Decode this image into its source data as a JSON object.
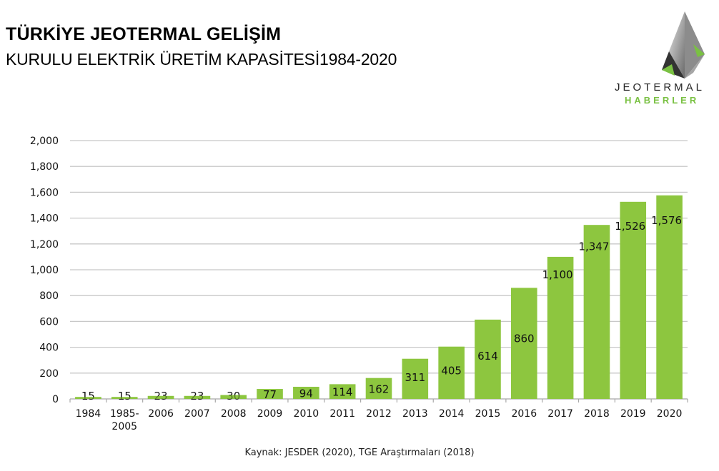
{
  "header": {
    "title": "TÜRKİYE JEOTERMAL GELİŞİM",
    "subtitle": "KURULU ELEKTRİK ÜRETİM KAPASİTESİ1984-2020"
  },
  "logo": {
    "name": "JEOTERMAL",
    "sub": "HABERLER",
    "colors": {
      "green": "#7ac143",
      "dark": "#3a3a3a",
      "gray": "#9a9a9a"
    }
  },
  "source": "Kaynak: JESDER (2020), TGE Araştırmaları (2018)",
  "chart_data": {
    "type": "bar",
    "title": "TÜRKİYE JEOTERMAL GELİŞİM",
    "subtitle": "KURULU ELEKTRİK ÜRETİM KAPASİTESİ1984-2020",
    "xlabel": "",
    "ylabel": "",
    "categories": [
      "1984",
      "1985-2005",
      "2006",
      "2007",
      "2008",
      "2009",
      "2010",
      "2011",
      "2012",
      "2013",
      "2014",
      "2015",
      "2016",
      "2017",
      "2018",
      "2019",
      "2020"
    ],
    "category_lines": [
      [
        "1984"
      ],
      [
        "1985-",
        "2005"
      ],
      [
        "2006"
      ],
      [
        "2007"
      ],
      [
        "2008"
      ],
      [
        "2009"
      ],
      [
        "2010"
      ],
      [
        "2011"
      ],
      [
        "2012"
      ],
      [
        "2013"
      ],
      [
        "2014"
      ],
      [
        "2015"
      ],
      [
        "2016"
      ],
      [
        "2017"
      ],
      [
        "2018"
      ],
      [
        "2019"
      ],
      [
        "2020"
      ]
    ],
    "values": [
      15,
      15,
      23,
      23,
      30,
      77,
      94,
      114,
      162,
      311,
      405,
      614,
      860,
      1100,
      1347,
      1526,
      1576
    ],
    "value_labels": [
      "15",
      "15",
      "23",
      "23",
      "30",
      "77",
      "94",
      "114",
      "162",
      "311",
      "405",
      "614",
      "860",
      "1,100",
      "1,347",
      "1,526",
      "1,576"
    ],
    "ylim": [
      0,
      2000
    ],
    "yticks": [
      0,
      200,
      400,
      600,
      800,
      1000,
      1200,
      1400,
      1600,
      1800,
      2000
    ],
    "ytick_labels": [
      "0",
      "200",
      "400",
      "600",
      "800",
      "1,000",
      "1,200",
      "1,400",
      "1,600",
      "1,800",
      "2,000"
    ],
    "grid": true,
    "legend": "none",
    "bar_color": "#8dc63f",
    "grid_color": "#c8c8c8"
  }
}
